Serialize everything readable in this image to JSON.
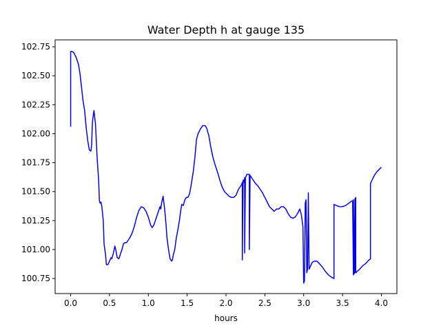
{
  "chart_data": {
    "type": "line",
    "title": "Water Depth h at gauge 135",
    "xlabel": "hours",
    "ylabel": "",
    "xlim": [
      -0.2,
      4.2
    ],
    "ylim": [
      100.62,
      102.81
    ],
    "grid": false,
    "x_ticks": [
      0.0,
      0.5,
      1.0,
      1.5,
      2.0,
      2.5,
      3.0,
      3.5,
      4.0
    ],
    "x_tick_labels": [
      "0.0",
      "0.5",
      "1.0",
      "1.5",
      "2.0",
      "2.5",
      "3.0",
      "3.5",
      "4.0"
    ],
    "y_ticks": [
      100.75,
      101.0,
      101.25,
      101.5,
      101.75,
      102.0,
      102.25,
      102.5,
      102.75
    ],
    "y_tick_labels": [
      "100.75",
      "101.00",
      "101.25",
      "101.50",
      "101.75",
      "102.00",
      "102.25",
      "102.50",
      "102.75"
    ],
    "series": [
      {
        "color": "#0000ff",
        "points": [
          [
            0.0,
            102.06
          ],
          [
            0.0,
            102.71
          ],
          [
            0.02,
            102.71
          ],
          [
            0.04,
            102.7
          ],
          [
            0.07,
            102.66
          ],
          [
            0.1,
            102.6
          ],
          [
            0.12,
            102.52
          ],
          [
            0.14,
            102.4
          ],
          [
            0.16,
            102.28
          ],
          [
            0.18,
            102.2
          ],
          [
            0.2,
            102.05
          ],
          [
            0.22,
            101.94
          ],
          [
            0.24,
            101.86
          ],
          [
            0.26,
            101.85
          ],
          [
            0.27,
            101.9
          ],
          [
            0.28,
            102.1
          ],
          [
            0.3,
            102.2
          ],
          [
            0.32,
            102.08
          ],
          [
            0.34,
            101.8
          ],
          [
            0.36,
            101.6
          ],
          [
            0.37,
            101.42
          ],
          [
            0.38,
            101.4
          ],
          [
            0.39,
            101.41
          ],
          [
            0.4,
            101.38
          ],
          [
            0.42,
            101.25
          ],
          [
            0.43,
            101.05
          ],
          [
            0.45,
            100.95
          ],
          [
            0.46,
            100.87
          ],
          [
            0.48,
            100.87
          ],
          [
            0.5,
            100.9
          ],
          [
            0.52,
            100.93
          ],
          [
            0.53,
            100.92
          ],
          [
            0.55,
            100.97
          ],
          [
            0.57,
            101.03
          ],
          [
            0.58,
            101.0
          ],
          [
            0.6,
            100.93
          ],
          [
            0.62,
            100.92
          ],
          [
            0.64,
            100.96
          ],
          [
            0.66,
            101.0
          ],
          [
            0.68,
            101.05
          ],
          [
            0.7,
            101.06
          ],
          [
            0.72,
            101.06
          ],
          [
            0.74,
            101.08
          ],
          [
            0.76,
            101.1
          ],
          [
            0.79,
            101.14
          ],
          [
            0.82,
            101.2
          ],
          [
            0.85,
            101.28
          ],
          [
            0.88,
            101.34
          ],
          [
            0.91,
            101.37
          ],
          [
            0.94,
            101.36
          ],
          [
            0.97,
            101.33
          ],
          [
            1.0,
            101.28
          ],
          [
            1.03,
            101.21
          ],
          [
            1.05,
            101.19
          ],
          [
            1.07,
            101.21
          ],
          [
            1.1,
            101.27
          ],
          [
            1.13,
            101.33
          ],
          [
            1.15,
            101.37
          ],
          [
            1.16,
            101.35
          ],
          [
            1.17,
            101.4
          ],
          [
            1.19,
            101.46
          ],
          [
            1.21,
            101.35
          ],
          [
            1.23,
            101.2
          ],
          [
            1.24,
            101.1
          ],
          [
            1.26,
            101.0
          ],
          [
            1.28,
            100.92
          ],
          [
            1.3,
            100.9
          ],
          [
            1.31,
            100.91
          ],
          [
            1.32,
            100.95
          ],
          [
            1.34,
            101.0
          ],
          [
            1.36,
            101.1
          ],
          [
            1.38,
            101.17
          ],
          [
            1.4,
            101.25
          ],
          [
            1.42,
            101.35
          ],
          [
            1.43,
            101.39
          ],
          [
            1.45,
            101.38
          ],
          [
            1.47,
            101.43
          ],
          [
            1.49,
            101.45
          ],
          [
            1.51,
            101.45
          ],
          [
            1.53,
            101.48
          ],
          [
            1.55,
            101.55
          ],
          [
            1.58,
            101.68
          ],
          [
            1.6,
            101.8
          ],
          [
            1.62,
            101.95
          ],
          [
            1.64,
            102.0
          ],
          [
            1.67,
            102.04
          ],
          [
            1.7,
            102.07
          ],
          [
            1.73,
            102.07
          ],
          [
            1.75,
            102.05
          ],
          [
            1.78,
            101.98
          ],
          [
            1.8,
            101.9
          ],
          [
            1.83,
            101.8
          ],
          [
            1.86,
            101.73
          ],
          [
            1.89,
            101.67
          ],
          [
            1.92,
            101.6
          ],
          [
            1.95,
            101.54
          ],
          [
            1.98,
            101.5
          ],
          [
            2.01,
            101.48
          ],
          [
            2.04,
            101.46
          ],
          [
            2.07,
            101.45
          ],
          [
            2.1,
            101.45
          ],
          [
            2.13,
            101.47
          ],
          [
            2.16,
            101.52
          ],
          [
            2.2,
            101.56
          ],
          [
            2.21,
            101.58
          ],
          [
            2.21,
            100.91
          ],
          [
            2.22,
            101.6
          ],
          [
            2.23,
            101.58
          ],
          [
            2.24,
            101.62
          ],
          [
            2.24,
            100.97
          ],
          [
            2.25,
            101.62
          ],
          [
            2.27,
            101.65
          ],
          [
            2.3,
            101.65
          ],
          [
            2.3,
            101.0
          ],
          [
            2.31,
            101.64
          ],
          [
            2.33,
            101.62
          ],
          [
            2.35,
            101.6
          ],
          [
            2.38,
            101.57
          ],
          [
            2.41,
            101.55
          ],
          [
            2.44,
            101.52
          ],
          [
            2.47,
            101.49
          ],
          [
            2.5,
            101.45
          ],
          [
            2.53,
            101.41
          ],
          [
            2.56,
            101.37
          ],
          [
            2.59,
            101.35
          ],
          [
            2.62,
            101.33
          ],
          [
            2.65,
            101.35
          ],
          [
            2.68,
            101.35
          ],
          [
            2.71,
            101.37
          ],
          [
            2.74,
            101.37
          ],
          [
            2.77,
            101.35
          ],
          [
            2.8,
            101.31
          ],
          [
            2.83,
            101.28
          ],
          [
            2.86,
            101.27
          ],
          [
            2.89,
            101.28
          ],
          [
            2.92,
            101.31
          ],
          [
            2.95,
            101.35
          ],
          [
            2.97,
            101.3
          ],
          [
            2.99,
            101.2
          ],
          [
            3.0,
            100.71
          ],
          [
            3.01,
            100.73
          ],
          [
            3.02,
            101.4
          ],
          [
            3.03,
            101.43
          ],
          [
            3.04,
            100.8
          ],
          [
            3.05,
            100.83
          ],
          [
            3.06,
            101.49
          ],
          [
            3.07,
            100.83
          ],
          [
            3.09,
            100.86
          ],
          [
            3.11,
            100.89
          ],
          [
            3.14,
            100.9
          ],
          [
            3.17,
            100.9
          ],
          [
            3.2,
            100.88
          ],
          [
            3.24,
            100.85
          ],
          [
            3.28,
            100.81
          ],
          [
            3.32,
            100.78
          ],
          [
            3.36,
            100.76
          ],
          [
            3.39,
            100.75
          ],
          [
            3.39,
            101.39
          ],
          [
            3.42,
            101.38
          ],
          [
            3.46,
            101.37
          ],
          [
            3.5,
            101.37
          ],
          [
            3.54,
            101.38
          ],
          [
            3.58,
            101.4
          ],
          [
            3.62,
            101.42
          ],
          [
            3.63,
            101.42
          ],
          [
            3.64,
            100.78
          ],
          [
            3.64,
            101.43
          ],
          [
            3.65,
            100.79
          ],
          [
            3.66,
            101.44
          ],
          [
            3.66,
            100.8
          ],
          [
            3.67,
            101.45
          ],
          [
            3.67,
            100.8
          ],
          [
            3.72,
            100.83
          ],
          [
            3.76,
            100.86
          ],
          [
            3.8,
            100.88
          ],
          [
            3.84,
            100.91
          ],
          [
            3.86,
            100.92
          ],
          [
            3.86,
            101.57
          ],
          [
            3.88,
            101.6
          ],
          [
            3.91,
            101.64
          ],
          [
            3.94,
            101.67
          ],
          [
            3.97,
            101.69
          ],
          [
            4.0,
            101.71
          ]
        ]
      }
    ]
  }
}
